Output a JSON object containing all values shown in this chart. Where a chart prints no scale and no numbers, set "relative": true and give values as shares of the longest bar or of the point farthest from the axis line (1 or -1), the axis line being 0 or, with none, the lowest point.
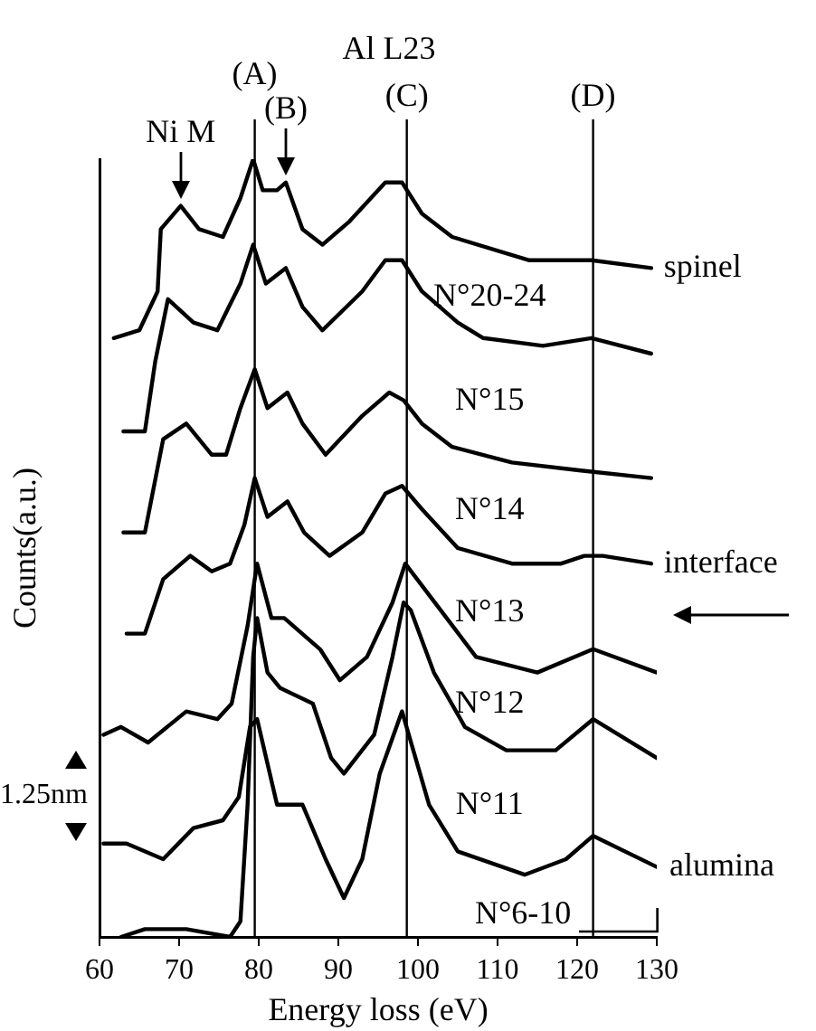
{
  "chart_data": {
    "type": "line",
    "xlabel": "Energy loss (eV)",
    "ylabel": "Counts(a.u.)",
    "relative": true,
    "xlim": [
      60,
      130
    ],
    "xticks": [
      60,
      70,
      80,
      90,
      100,
      110,
      120,
      130
    ],
    "tick_labels": "x",
    "grid": false,
    "legend": false,
    "marker": "none",
    "line_style": "solid",
    "ref_lines": [
      {
        "axis": "x",
        "value": 79.5,
        "label": "(A)"
      },
      {
        "axis": "x",
        "value": 98.6,
        "label": "(C)"
      },
      {
        "axis": "x",
        "value": 122,
        "label": "(D)"
      }
    ],
    "annotations": [
      "Al L23",
      "N°6-10",
      "1.25nm",
      {
        "text": "(B)",
        "x": 83.4,
        "y": 0.97
      },
      {
        "text": "Ni M",
        "x": 70.2,
        "y": 0.94
      },
      {
        "text": "interface",
        "x": 129.3,
        "y": 0.48
      },
      {
        "text": "alumina",
        "x": 130,
        "y": 0.09
      }
    ],
    "series": [
      {
        "name": "spinel",
        "color": "#000000",
        "x": [
          61.8,
          65,
          67.3,
          67.7,
          70.2,
          72.5,
          75.5,
          77.7,
          79.3,
          80.5,
          82.3,
          83.4,
          85.5,
          88,
          91.4,
          95.9,
          98,
          100.5,
          104.3,
          114,
          121.8,
          129.3
        ],
        "values": [
          0.77,
          0.78,
          0.83,
          0.91,
          0.94,
          0.91,
          0.9,
          0.95,
          1,
          0.96,
          0.96,
          0.97,
          0.91,
          0.89,
          0.92,
          0.97,
          0.97,
          0.93,
          0.9,
          0.87,
          0.87,
          0.86
        ]
      },
      {
        "name": "N°20-24",
        "color": "#000000",
        "x": [
          63,
          65.7,
          67,
          68.6,
          71.8,
          74.8,
          77.7,
          79.3,
          80.9,
          83.4,
          85.5,
          88,
          93,
          95.9,
          98,
          100.5,
          105,
          108.2,
          115.7,
          121.8,
          129.3
        ],
        "values": [
          0.65,
          0.65,
          0.74,
          0.82,
          0.79,
          0.78,
          0.84,
          0.89,
          0.84,
          0.86,
          0.81,
          0.78,
          0.83,
          0.87,
          0.87,
          0.83,
          0.79,
          0.77,
          0.76,
          0.77,
          0.75
        ]
      },
      {
        "name": "N°15",
        "color": "#000000",
        "x": [
          63,
          65.7,
          68,
          70.9,
          74.1,
          75.9,
          77.7,
          79.5,
          81.1,
          83.6,
          85.5,
          88.4,
          93,
          96.4,
          98.2,
          100.5,
          104.3,
          111.8,
          120.2,
          129.3
        ],
        "values": [
          0.52,
          0.52,
          0.64,
          0.66,
          0.62,
          0.62,
          0.68,
          0.73,
          0.68,
          0.7,
          0.66,
          0.62,
          0.67,
          0.7,
          0.69,
          0.66,
          0.63,
          0.61,
          0.6,
          0.59
        ]
      },
      {
        "name": "N°14",
        "color": "#000000",
        "x": [
          63.4,
          65.7,
          68,
          71.4,
          74.1,
          76.4,
          78.2,
          79.5,
          81.1,
          83.6,
          85.7,
          88.9,
          93,
          95.9,
          98,
          100.5,
          105,
          111.8,
          118,
          120.9,
          123.2,
          129.3
        ],
        "values": [
          0.39,
          0.39,
          0.46,
          0.49,
          0.47,
          0.48,
          0.53,
          0.59,
          0.54,
          0.56,
          0.52,
          0.49,
          0.52,
          0.57,
          0.58,
          0.55,
          0.5,
          0.48,
          0.48,
          0.49,
          0.49,
          0.48
        ]
      },
      {
        "name": "N°13",
        "color": "#000000",
        "x": [
          60.5,
          62.7,
          66.1,
          70.9,
          74.8,
          76.6,
          78.6,
          79.8,
          81.6,
          83.2,
          87.7,
          90.2,
          93.6,
          96.8,
          98.4,
          103.6,
          107.3,
          115,
          122,
          130
        ],
        "values": [
          0.26,
          0.27,
          0.25,
          0.29,
          0.28,
          0.3,
          0.4,
          0.48,
          0.41,
          0.41,
          0.37,
          0.33,
          0.36,
          0.43,
          0.48,
          0.41,
          0.36,
          0.34,
          0.37,
          0.34
        ]
      },
      {
        "name": "N°12",
        "color": "#000000",
        "x": [
          62.7,
          65.7,
          70.9,
          76.4,
          77.7,
          78.6,
          79.3,
          79.8,
          81.1,
          82.7,
          86.8,
          89.1,
          90.7,
          94.5,
          96.8,
          98.2,
          99.1,
          102,
          105.9,
          111.1,
          117.3,
          122,
          130
        ],
        "values": [
          0,
          0.01,
          0.01,
          0,
          0.02,
          0.17,
          0.36,
          0.41,
          0.34,
          0.32,
          0.3,
          0.23,
          0.21,
          0.26,
          0.36,
          0.43,
          0.42,
          0.34,
          0.27,
          0.24,
          0.24,
          0.28,
          0.23
        ]
      },
      {
        "name": "N°11",
        "color": "#000000",
        "x": [
          60.5,
          63.4,
          68,
          71.8,
          75.5,
          77.5,
          78.9,
          79.8,
          82.3,
          85.5,
          88.4,
          90.7,
          93,
          95.2,
          98,
          101.4,
          105,
          113.4,
          118.6,
          122,
          130
        ],
        "values": [
          0.12,
          0.12,
          0.1,
          0.14,
          0.15,
          0.18,
          0.27,
          0.28,
          0.17,
          0.17,
          0.1,
          0.05,
          0.1,
          0.21,
          0.29,
          0.17,
          0.11,
          0.08,
          0.1,
          0.13,
          0.09
        ]
      }
    ]
  }
}
